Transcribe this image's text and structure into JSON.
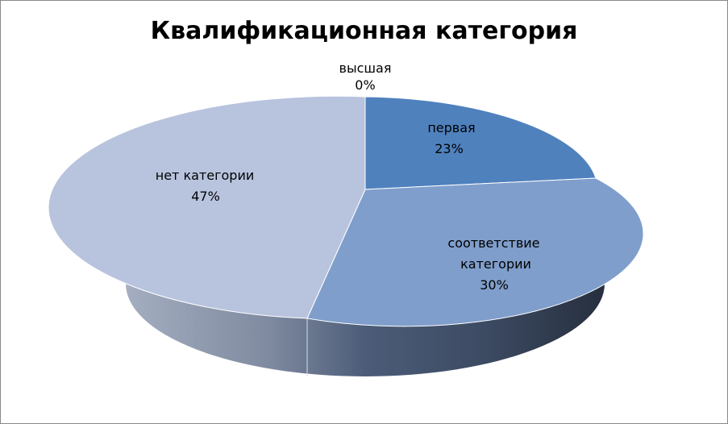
{
  "chart_data": {
    "type": "pie",
    "title": "Квалификационная категория",
    "categories": [
      "высшая",
      "первая",
      "соответствие категории",
      "нет категории"
    ],
    "values": [
      0,
      23,
      30,
      47
    ],
    "labels": [
      "0%",
      "23%",
      "30%",
      "47%"
    ],
    "three_d": true,
    "legend": "none",
    "colors": {
      "высшая": "#4F81BD",
      "первая": "#4F81BD",
      "соответствие категории": "#7F9ECB",
      "нет категории": "#B8C4DE"
    }
  }
}
